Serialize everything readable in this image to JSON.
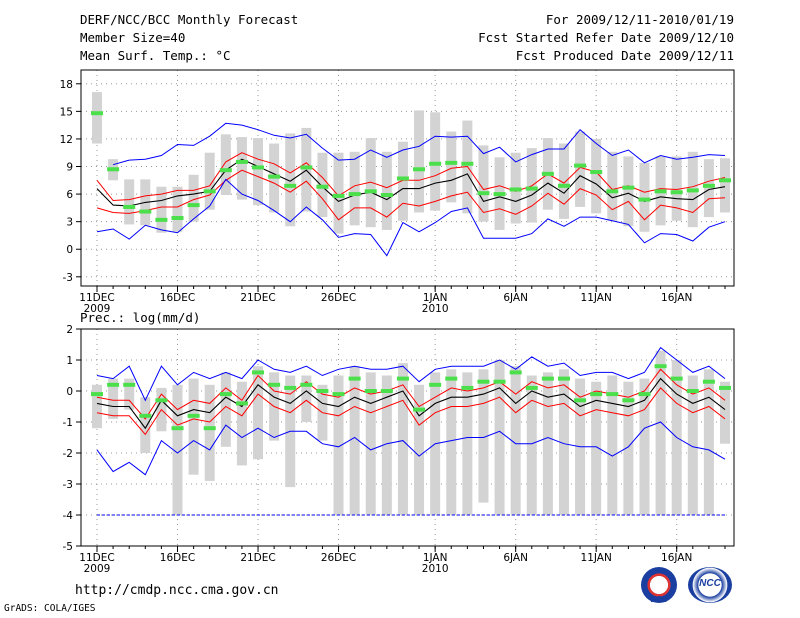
{
  "header": {
    "title": "DERF/NCC/BCC Monthly Forecast",
    "member_size": "Member Size=40",
    "variable": "Mean Surf. Temp.: °C",
    "period": "For 2009/12/11-2010/01/19",
    "started": "Fcst Started Refer Date 2009/12/10",
    "produced": "Fcst Produced Date 2009/12/11"
  },
  "footer": {
    "url": "http://cmdp.ncc.cma.gov.cn",
    "grads": "GrADS: COLA/IGES",
    "logo_bcc": "BCC",
    "logo_ncc": "NCC"
  },
  "colors": {
    "box": "#d3d3d3",
    "median": "#4be04b",
    "mean": "#000000",
    "range": "#0000ff",
    "spread": "#ff0000",
    "grid": "#999999"
  },
  "chart_data": [
    {
      "type": "box-line",
      "title": "Mean Surf. Temp.: °C",
      "x_tick_labels": [
        "11DEC",
        "16DEC",
        "21DEC",
        "26DEC",
        "1JAN",
        "6JAN",
        "11JAN",
        "16JAN"
      ],
      "x_year_labels": [
        "2009",
        "",
        "",
        "",
        "2010",
        "",
        "",
        ""
      ],
      "x_tick_days": [
        0,
        5,
        10,
        15,
        21,
        26,
        31,
        36
      ],
      "ylim": [
        -4,
        19.5
      ],
      "yticks": [
        -3,
        0,
        3,
        6,
        9,
        12,
        15,
        18
      ],
      "days": 40,
      "median": [
        14.8,
        8.7,
        4.6,
        4.1,
        3.2,
        3.4,
        4.8,
        6.3,
        8.6,
        9.5,
        8.9,
        7.9,
        6.9,
        8.9,
        6.8,
        5.8,
        6.0,
        6.3,
        5.9,
        7.7,
        8.7,
        9.3,
        9.4,
        9.3,
        6.1,
        6.0,
        6.5,
        6.6,
        8.2,
        6.9,
        9.1,
        8.4,
        6.3,
        6.7,
        5.4,
        6.3,
        6.2,
        6.4,
        6.9,
        7.5
      ],
      "box_low": [
        11.5,
        7.5,
        2.7,
        2.6,
        1.8,
        1.9,
        3.0,
        4.3,
        5.9,
        5.4,
        4.8,
        4.0,
        2.5,
        4.1,
        3.5,
        1.7,
        2.6,
        2.4,
        2.1,
        3.1,
        4.0,
        4.2,
        5.1,
        3.9,
        3.0,
        2.1,
        2.8,
        2.9,
        4.3,
        3.3,
        4.6,
        3.9,
        3.1,
        2.5,
        1.9,
        2.6,
        3.1,
        2.4,
        3.5,
        4.0
      ],
      "box_high": [
        17.1,
        9.8,
        7.6,
        7.6,
        6.8,
        6.8,
        8.1,
        10.5,
        12.5,
        12.2,
        12.1,
        11.5,
        12.6,
        13.2,
        10.5,
        10.5,
        10.6,
        12.1,
        10.6,
        11.7,
        15.1,
        14.9,
        12.8,
        14.0,
        11.3,
        10.0,
        10.5,
        11.0,
        12.1,
        11.5,
        12.8,
        12.0,
        10.6,
        10.1,
        9.4,
        10.1,
        10.1,
        10.6,
        9.8,
        9.9
      ],
      "series": [
        {
          "name": "max",
          "values": [
            null,
            9.2,
            9.7,
            9.8,
            10.2,
            11.4,
            11.3,
            12.3,
            13.7,
            13.5,
            13.0,
            12.4,
            12.1,
            12.5,
            11.0,
            9.7,
            9.8,
            10.8,
            10.0,
            10.8,
            11.2,
            12.3,
            12.2,
            12.3,
            10.4,
            11.1,
            9.5,
            10.3,
            10.9,
            10.9,
            13.0,
            11.5,
            10.2,
            10.8,
            9.4,
            10.2,
            9.8,
            10.0,
            10.3,
            10.2
          ]
        },
        {
          "name": "spread_high",
          "values": [
            7.5,
            5.3,
            5.4,
            5.8,
            6.0,
            6.4,
            6.4,
            6.9,
            9.5,
            10.5,
            9.8,
            9.3,
            8.3,
            9.4,
            7.8,
            5.8,
            6.9,
            7.3,
            6.7,
            7.5,
            7.5,
            8.0,
            8.8,
            9.0,
            6.5,
            6.9,
            6.3,
            6.9,
            8.2,
            7.2,
            8.9,
            8.4,
            6.5,
            6.9,
            6.2,
            6.6,
            6.5,
            6.8,
            7.4,
            7.8
          ]
        },
        {
          "name": "mean",
          "values": [
            6.6,
            4.8,
            4.7,
            5.1,
            5.3,
            5.8,
            6.0,
            6.3,
            8.6,
            9.8,
            9.0,
            8.2,
            7.4,
            8.6,
            6.8,
            5.2,
            5.9,
            6.2,
            5.4,
            6.6,
            6.6,
            7.2,
            7.5,
            8.2,
            5.2,
            5.7,
            5.2,
            5.9,
            7.2,
            6.1,
            8.0,
            7.1,
            5.6,
            6.1,
            5.2,
            5.7,
            5.5,
            5.4,
            6.5,
            6.8
          ]
        },
        {
          "name": "spread_low",
          "values": [
            4.5,
            4.0,
            3.9,
            4.2,
            4.6,
            4.6,
            5.4,
            5.9,
            7.5,
            8.6,
            7.9,
            7.2,
            6.2,
            7.4,
            5.5,
            3.2,
            4.5,
            4.5,
            3.5,
            5.0,
            4.7,
            5.2,
            5.8,
            6.2,
            4.0,
            4.4,
            3.8,
            4.7,
            6.1,
            4.9,
            6.6,
            5.9,
            4.3,
            5.2,
            3.2,
            4.8,
            4.5,
            4.0,
            5.5,
            5.6
          ]
        },
        {
          "name": "min",
          "values": [
            1.9,
            2.2,
            1.1,
            2.6,
            2.1,
            1.8,
            3.3,
            4.7,
            7.6,
            6.0,
            5.3,
            4.2,
            3.0,
            4.6,
            3.2,
            1.3,
            1.7,
            1.6,
            -0.7,
            2.9,
            1.9,
            2.9,
            4.1,
            4.5,
            1.2,
            1.2,
            1.2,
            1.7,
            3.3,
            2.5,
            3.5,
            3.5,
            3.1,
            2.7,
            0.7,
            1.7,
            1.6,
            0.9,
            2.4,
            3.0
          ]
        }
      ]
    },
    {
      "type": "box-line",
      "title": "Prec.: log(mm/d)",
      "x_tick_labels": [
        "11DEC",
        "16DEC",
        "21DEC",
        "26DEC",
        "1JAN",
        "6JAN",
        "11JAN",
        "16JAN"
      ],
      "x_year_labels": [
        "2009",
        "",
        "",
        "",
        "2010",
        "",
        "",
        ""
      ],
      "x_tick_days": [
        0,
        5,
        10,
        15,
        21,
        26,
        31,
        36
      ],
      "ylim": [
        -5,
        2
      ],
      "yticks": [
        -5,
        -4,
        -3,
        -2,
        -1,
        0,
        1,
        2
      ],
      "days": 40,
      "median": [
        -0.1,
        0.2,
        0.2,
        -0.8,
        -0.3,
        -1.2,
        -0.8,
        -1.2,
        -0.1,
        -0.4,
        0.6,
        0.2,
        0.1,
        0.2,
        0.0,
        -0.1,
        0.4,
        0.0,
        0.0,
        0.4,
        -0.6,
        0.2,
        0.4,
        0.1,
        0.3,
        0.3,
        0.6,
        0.1,
        0.4,
        0.4,
        -0.3,
        -0.1,
        -0.1,
        -0.3,
        -0.1,
        0.8,
        0.4,
        0.0,
        0.3,
        0.1
      ],
      "box_low": [
        -1.2,
        -0.9,
        -0.6,
        -2.0,
        -1.3,
        -4.0,
        -2.7,
        -2.9,
        -1.8,
        -2.4,
        -2.2,
        -1.6,
        -3.1,
        -1.0,
        -1.6,
        -4.0,
        -4.0,
        -4.0,
        -4.0,
        -4.0,
        -4.0,
        -4.0,
        -4.0,
        -4.0,
        -3.6,
        -4.0,
        -4.0,
        -4.0,
        -4.0,
        -4.0,
        -4.0,
        -4.0,
        -4.0,
        -4.0,
        -4.0,
        -4.0,
        -4.0,
        -4.0,
        -4.0,
        -1.7
      ],
      "box_high": [
        0.2,
        0.4,
        0.4,
        -0.2,
        0.1,
        0.2,
        0.4,
        0.2,
        0.6,
        0.3,
        0.8,
        0.6,
        0.5,
        0.5,
        0.2,
        0.5,
        0.8,
        0.6,
        0.5,
        0.9,
        0.2,
        0.6,
        0.7,
        0.6,
        0.7,
        1.0,
        0.8,
        0.5,
        0.6,
        0.7,
        0.4,
        0.3,
        0.5,
        0.3,
        0.4,
        1.3,
        1.0,
        0.5,
        0.7,
        0.3
      ],
      "series": [
        {
          "name": "max",
          "values": [
            0.5,
            0.4,
            0.8,
            -0.3,
            0.8,
            0.2,
            0.6,
            0.4,
            0.6,
            0.4,
            1.0,
            0.7,
            0.6,
            0.8,
            0.5,
            0.7,
            0.8,
            0.7,
            0.7,
            0.8,
            0.3,
            0.7,
            0.8,
            0.8,
            0.8,
            1.0,
            0.7,
            1.1,
            0.8,
            0.9,
            0.5,
            0.6,
            0.6,
            0.4,
            0.6,
            1.4,
            1.0,
            0.6,
            0.8,
            0.4
          ]
        },
        {
          "name": "spread_high",
          "values": [
            -0.2,
            -0.3,
            -0.3,
            -0.9,
            -0.1,
            -0.6,
            -0.3,
            -0.4,
            0.1,
            -0.3,
            0.5,
            0.0,
            -0.1,
            0.3,
            -0.1,
            -0.2,
            0.1,
            -0.1,
            0.0,
            0.2,
            -0.5,
            -0.2,
            0.1,
            0.0,
            0.1,
            0.3,
            -0.1,
            0.3,
            0.1,
            0.2,
            -0.2,
            0.0,
            -0.1,
            -0.2,
            0.0,
            0.7,
            0.2,
            -0.1,
            0.1,
            -0.3
          ]
        },
        {
          "name": "mean",
          "values": [
            -0.4,
            -0.5,
            -0.5,
            -1.2,
            -0.3,
            -0.8,
            -0.6,
            -0.7,
            -0.2,
            -0.5,
            0.2,
            -0.2,
            -0.4,
            0.0,
            -0.4,
            -0.5,
            -0.2,
            -0.4,
            -0.2,
            0.0,
            -0.8,
            -0.4,
            -0.2,
            -0.2,
            -0.1,
            0.1,
            -0.4,
            0.0,
            -0.2,
            -0.1,
            -0.5,
            -0.3,
            -0.4,
            -0.5,
            -0.3,
            0.4,
            -0.1,
            -0.4,
            -0.2,
            -0.6
          ]
        },
        {
          "name": "spread_low",
          "values": [
            -0.7,
            -0.8,
            -0.8,
            -1.4,
            -0.6,
            -1.1,
            -0.9,
            -1.0,
            -0.5,
            -0.8,
            -0.1,
            -0.5,
            -0.7,
            -0.3,
            -0.7,
            -0.8,
            -0.5,
            -0.7,
            -0.5,
            -0.3,
            -1.1,
            -0.7,
            -0.5,
            -0.5,
            -0.4,
            -0.2,
            -0.7,
            -0.3,
            -0.5,
            -0.4,
            -0.8,
            -0.6,
            -0.7,
            -0.8,
            -0.6,
            0.1,
            -0.4,
            -0.7,
            -0.5,
            -0.9
          ]
        },
        {
          "name": "min",
          "values": [
            -1.9,
            -2.6,
            -2.3,
            -2.7,
            -1.6,
            -2.0,
            -1.6,
            -1.9,
            -1.1,
            -1.5,
            -1.2,
            -1.5,
            -1.3,
            -1.3,
            -1.7,
            -1.8,
            -1.5,
            -1.9,
            -1.7,
            -1.6,
            -2.1,
            -1.7,
            -1.6,
            -1.5,
            -1.5,
            -1.3,
            -1.7,
            -1.7,
            -1.5,
            -1.7,
            -1.8,
            -1.8,
            -2.1,
            -1.8,
            -1.2,
            -1.0,
            -1.5,
            -1.8,
            -1.9,
            -2.2
          ]
        },
        {
          "name": "floor",
          "values": [
            -4,
            -4,
            -4,
            -4,
            -4,
            -4,
            -4,
            -4,
            -4,
            -4,
            -4,
            -4,
            -4,
            -4,
            -4,
            -4,
            -4,
            -4,
            -4,
            -4,
            -4,
            -4,
            -4,
            -4,
            -4,
            -4,
            -4,
            -4,
            -4,
            -4,
            -4,
            -4,
            -4,
            -4,
            -4,
            -4,
            -4,
            -4,
            -4,
            -4
          ]
        }
      ]
    }
  ]
}
